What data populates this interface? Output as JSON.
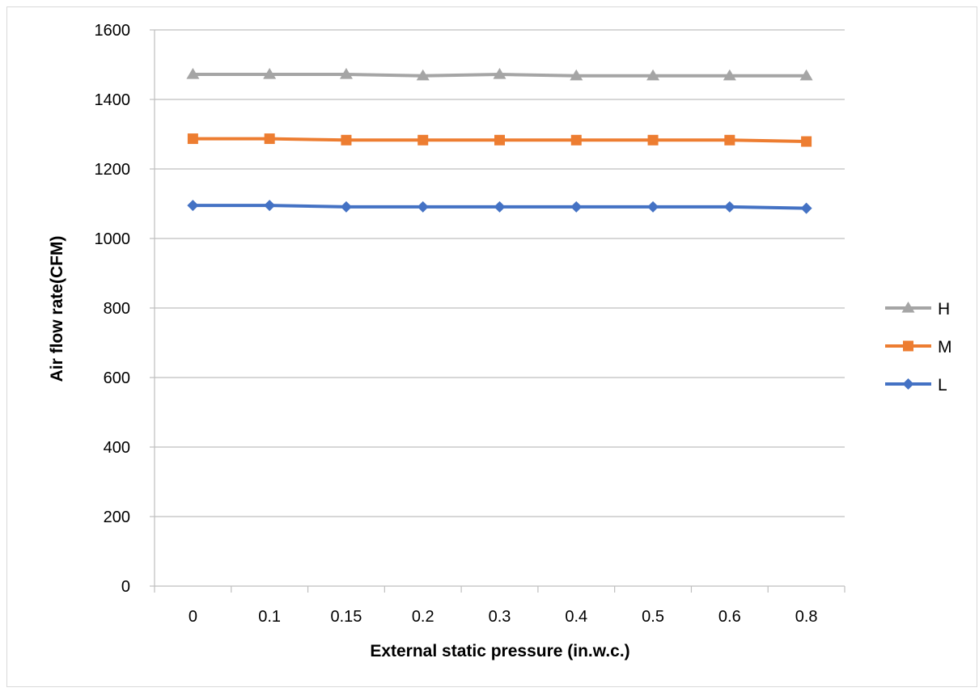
{
  "chart_data": {
    "type": "line",
    "title": "",
    "xlabel": "External static pressure (in.w.c.)",
    "ylabel": "Air flow rate(CFM)",
    "categories": [
      "0",
      "0.1",
      "0.15",
      "0.2",
      "0.3",
      "0.4",
      "0.5",
      "0.6",
      "0.8"
    ],
    "ylim": [
      0,
      1600
    ],
    "yticks": [
      "0",
      "200",
      "400",
      "600",
      "800",
      "1000",
      "1200",
      "1400",
      "1600"
    ],
    "grid": "horizontal",
    "legend_position": "right",
    "series": [
      {
        "name": "H",
        "color": "#a5a5a5",
        "marker": "triangle",
        "values": [
          1472,
          1472,
          1472,
          1468,
          1472,
          1468,
          1468,
          1468,
          1468
        ]
      },
      {
        "name": "M",
        "color": "#ed7d31",
        "marker": "square",
        "values": [
          1287,
          1287,
          1283,
          1283,
          1283,
          1283,
          1283,
          1283,
          1279
        ]
      },
      {
        "name": "L",
        "color": "#4472c4",
        "marker": "diamond",
        "values": [
          1095,
          1095,
          1091,
          1091,
          1091,
          1091,
          1091,
          1091,
          1087
        ]
      }
    ]
  }
}
